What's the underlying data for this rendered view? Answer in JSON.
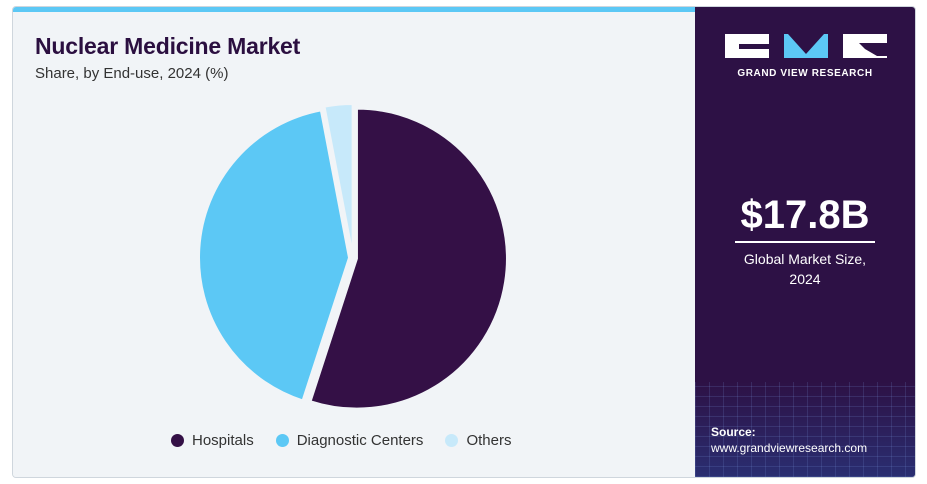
{
  "header": {
    "title": "Nuclear Medicine Market",
    "subtitle": "Share, by End-use, 2024 (%)"
  },
  "colors": {
    "hospitals": "#341046",
    "diagnostic_centers": "#5cc8f5",
    "others": "#c7e9fa",
    "panel": "#2d1145",
    "accent": "#5cc8f5"
  },
  "chart_data": {
    "type": "pie",
    "title": "Nuclear Medicine Market",
    "subtitle": "Share, by End-use, 2024 (%)",
    "categories": [
      "Hospitals",
      "Diagnostic Centers",
      "Others"
    ],
    "values": [
      55,
      42,
      3
    ],
    "legend_position": "bottom"
  },
  "legend": {
    "items": [
      {
        "label": "Hospitals",
        "color": "#341046"
      },
      {
        "label": "Diagnostic Centers",
        "color": "#5cc8f5"
      },
      {
        "label": "Others",
        "color": "#c7e9fa"
      }
    ]
  },
  "sidebar": {
    "brand": "GRAND VIEW RESEARCH",
    "market_value": "$17.8B",
    "market_label_line1": "Global Market Size,",
    "market_label_line2": "2024",
    "source_label": "Source:",
    "source_url": "www.grandviewresearch.com"
  }
}
